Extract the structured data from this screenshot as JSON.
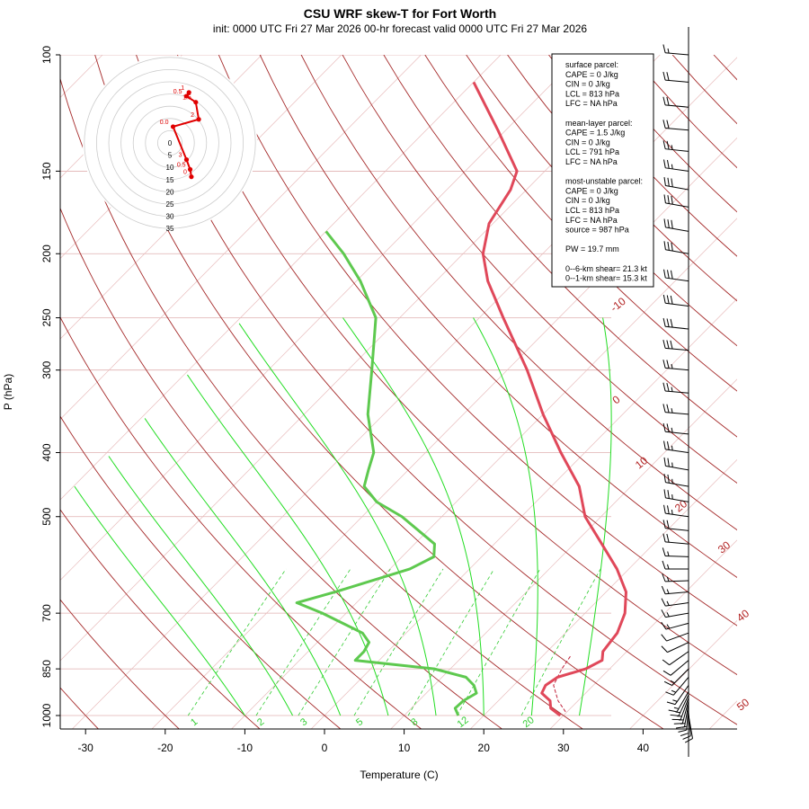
{
  "title": "CSU WRF skew-T for Fort Worth",
  "subtitle": "init: 0000 UTC Fri 27 Mar 2026     00-hr forecast valid 0000 UTC Fri 27 Mar 2026",
  "colors": {
    "isotherm": "#b22222",
    "dry_adiabat": "#a52a2a",
    "moist_adiabat": "#22dd22",
    "mixing_ratio": "#33cc33",
    "temperature": "#e0485a",
    "dewpoint": "#5ec94f",
    "parcel": "#c0203a",
    "hodograph": "#e00000"
  },
  "chart_data": {
    "type": "line",
    "xlabel": "Temperature (C)",
    "ylabel": "P (hPa)",
    "x_ticks": [
      -30,
      -20,
      -10,
      0,
      10,
      20,
      30,
      40
    ],
    "y_ticks": [
      100,
      150,
      200,
      250,
      300,
      400,
      500,
      700,
      850,
      1000
    ],
    "xlim": [
      -33,
      43
    ],
    "ylim": [
      1050,
      100
    ],
    "isotherm_labels": [
      "-10",
      "0",
      "10",
      "20",
      "30",
      "40",
      "50"
    ],
    "mixing_ratio_labels": [
      "1",
      "2",
      "3",
      "5",
      "8",
      "12",
      "20"
    ],
    "temperature_profile": [
      {
        "p": 1000,
        "t": 29.6
      },
      {
        "p": 975,
        "t": 27.5
      },
      {
        "p": 950,
        "t": 26.5
      },
      {
        "p": 925,
        "t": 24.5
      },
      {
        "p": 900,
        "t": 24.0
      },
      {
        "p": 875,
        "t": 24.5
      },
      {
        "p": 850,
        "t": 27.0
      },
      {
        "p": 825,
        "t": 28.0
      },
      {
        "p": 800,
        "t": 27.0
      },
      {
        "p": 750,
        "t": 26.5
      },
      {
        "p": 700,
        "t": 25.0
      },
      {
        "p": 650,
        "t": 22.5
      },
      {
        "p": 600,
        "t": 18.5
      },
      {
        "p": 550,
        "t": 13.5
      },
      {
        "p": 500,
        "t": 8.0
      },
      {
        "p": 450,
        "t": 3.5
      },
      {
        "p": 400,
        "t": -3.0
      },
      {
        "p": 350,
        "t": -10.0
      },
      {
        "p": 300,
        "t": -17.5
      },
      {
        "p": 250,
        "t": -27.0
      },
      {
        "p": 220,
        "t": -33.5
      },
      {
        "p": 200,
        "t": -37.5
      },
      {
        "p": 180,
        "t": -40.5
      },
      {
        "p": 160,
        "t": -42.0
      },
      {
        "p": 150,
        "t": -43.5
      },
      {
        "p": 130,
        "t": -51.0
      },
      {
        "p": 110,
        "t": -60.0
      }
    ],
    "dewpoint_profile": [
      {
        "p": 1000,
        "t": 16.8
      },
      {
        "p": 975,
        "t": 15.5
      },
      {
        "p": 950,
        "t": 15.6
      },
      {
        "p": 925,
        "t": 16.3
      },
      {
        "p": 900,
        "t": 15.0
      },
      {
        "p": 875,
        "t": 13.0
      },
      {
        "p": 850,
        "t": 8.0
      },
      {
        "p": 825,
        "t": -3.0
      },
      {
        "p": 800,
        "t": -3.0
      },
      {
        "p": 775,
        "t": -3.5
      },
      {
        "p": 750,
        "t": -5.5
      },
      {
        "p": 700,
        "t": -13.0
      },
      {
        "p": 675,
        "t": -17.5
      },
      {
        "p": 650,
        "t": -14.0
      },
      {
        "p": 600,
        "t": -7.5
      },
      {
        "p": 575,
        "t": -6.0
      },
      {
        "p": 550,
        "t": -7.5
      },
      {
        "p": 500,
        "t": -15.0
      },
      {
        "p": 475,
        "t": -20.0
      },
      {
        "p": 450,
        "t": -23.5
      },
      {
        "p": 425,
        "t": -25.0
      },
      {
        "p": 400,
        "t": -26.5
      },
      {
        "p": 350,
        "t": -32.0
      },
      {
        "p": 300,
        "t": -37.0
      },
      {
        "p": 250,
        "t": -43.0
      },
      {
        "p": 220,
        "t": -49.5
      },
      {
        "p": 200,
        "t": -55.0
      },
      {
        "p": 185,
        "t": -60.0
      }
    ],
    "parcel_profile": [
      {
        "p": 987,
        "t": 29.8
      },
      {
        "p": 950,
        "t": 27.5
      },
      {
        "p": 900,
        "t": 25.0
      },
      {
        "p": 850,
        "t": 24.0
      },
      {
        "p": 813,
        "t": 23.5
      }
    ],
    "hodograph": {
      "ring_labels": [
        "0",
        "5",
        "10",
        "15",
        "20",
        "25",
        "30",
        "35"
      ],
      "points": [
        {
          "u": -1.5,
          "v": -6.5,
          "label": "0"
        },
        {
          "u": -2.0,
          "v": -3.5,
          "label": "0.5"
        },
        {
          "u": -3.5,
          "v": 0.5,
          "label": "3"
        },
        {
          "u": -9.0,
          "v": 14.0,
          "label": "0.0"
        },
        {
          "u": 1.5,
          "v": 17.0,
          "label": "2"
        },
        {
          "u": 0.3,
          "v": 24.0,
          "label": "1.5"
        },
        {
          "u": -3.5,
          "v": 26.5,
          "label": "0.5"
        },
        {
          "u": -2.5,
          "v": 28.0,
          "label": "1"
        }
      ]
    }
  },
  "legend": {
    "lines": [
      "surface parcel:",
      "CAPE = 0 J/kg",
      "CIN = 0 J/kg",
      "LCL = 813 hPa",
      "LFC = NA hPa",
      "",
      "mean-layer parcel:",
      "CAPE = 1.5 J/kg",
      "CIN = 0 J/kg",
      "LCL = 791 hPa",
      "LFC = NA hPa",
      "",
      "most-unstable parcel:",
      "CAPE = 0 J/kg",
      "CIN = 0 J/kg",
      "LCL = 813 hPa",
      "LFC = NA hPa",
      "source = 987 hPa",
      "",
      "PW =  19.7 mm",
      "",
      "0--6-km shear= 21.3 kt",
      "0--1-km shear= 15.3 kt"
    ]
  },
  "wind_barbs": [
    {
      "p": 1000,
      "speed": 10,
      "dir": 170
    },
    {
      "p": 990,
      "speed": 12,
      "dir": 175
    },
    {
      "p": 980,
      "speed": 14,
      "dir": 180
    },
    {
      "p": 970,
      "speed": 15,
      "dir": 185
    },
    {
      "p": 960,
      "speed": 16,
      "dir": 190
    },
    {
      "p": 950,
      "speed": 17,
      "dir": 195
    },
    {
      "p": 940,
      "speed": 18,
      "dir": 200
    },
    {
      "p": 930,
      "speed": 18,
      "dir": 205
    },
    {
      "p": 920,
      "speed": 18,
      "dir": 210
    },
    {
      "p": 900,
      "speed": 18,
      "dir": 215
    },
    {
      "p": 875,
      "speed": 16,
      "dir": 220
    },
    {
      "p": 850,
      "speed": 15,
      "dir": 225
    },
    {
      "p": 825,
      "speed": 14,
      "dir": 230
    },
    {
      "p": 800,
      "speed": 13,
      "dir": 235
    },
    {
      "p": 775,
      "speed": 13,
      "dir": 245
    },
    {
      "p": 750,
      "speed": 14,
      "dir": 250
    },
    {
      "p": 725,
      "speed": 15,
      "dir": 255
    },
    {
      "p": 700,
      "speed": 16,
      "dir": 260
    },
    {
      "p": 675,
      "speed": 17,
      "dir": 262
    },
    {
      "p": 650,
      "speed": 18,
      "dir": 265
    },
    {
      "p": 625,
      "speed": 18,
      "dir": 268
    },
    {
      "p": 600,
      "speed": 18,
      "dir": 270
    },
    {
      "p": 575,
      "speed": 19,
      "dir": 272
    },
    {
      "p": 550,
      "speed": 20,
      "dir": 275
    },
    {
      "p": 525,
      "speed": 22,
      "dir": 276
    },
    {
      "p": 500,
      "speed": 25,
      "dir": 278
    },
    {
      "p": 475,
      "speed": 26,
      "dir": 280
    },
    {
      "p": 450,
      "speed": 25,
      "dir": 280
    },
    {
      "p": 425,
      "speed": 25,
      "dir": 280
    },
    {
      "p": 400,
      "speed": 26,
      "dir": 278
    },
    {
      "p": 375,
      "speed": 27,
      "dir": 276
    },
    {
      "p": 350,
      "speed": 28,
      "dir": 275
    },
    {
      "p": 325,
      "speed": 28,
      "dir": 275
    },
    {
      "p": 300,
      "speed": 29,
      "dir": 275
    },
    {
      "p": 280,
      "speed": 30,
      "dir": 275
    },
    {
      "p": 260,
      "speed": 30,
      "dir": 276
    },
    {
      "p": 240,
      "speed": 31,
      "dir": 277
    },
    {
      "p": 220,
      "speed": 32,
      "dir": 278
    },
    {
      "p": 200,
      "speed": 33,
      "dir": 280
    },
    {
      "p": 185,
      "speed": 33,
      "dir": 280
    },
    {
      "p": 170,
      "speed": 32,
      "dir": 280
    },
    {
      "p": 160,
      "speed": 30,
      "dir": 280
    },
    {
      "p": 150,
      "speed": 28,
      "dir": 278
    },
    {
      "p": 140,
      "speed": 26,
      "dir": 276
    },
    {
      "p": 130,
      "speed": 24,
      "dir": 275
    },
    {
      "p": 120,
      "speed": 22,
      "dir": 275
    },
    {
      "p": 110,
      "speed": 20,
      "dir": 275
    },
    {
      "p": 100,
      "speed": 18,
      "dir": 275
    }
  ]
}
